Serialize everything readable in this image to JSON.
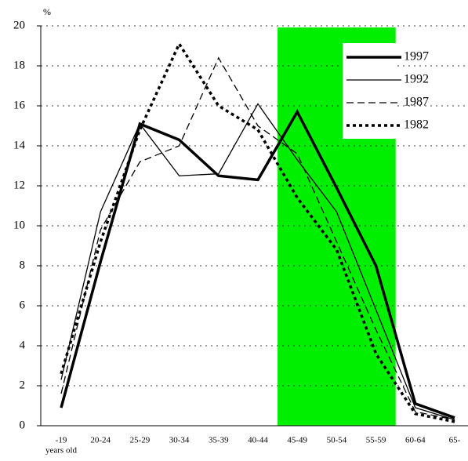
{
  "chart_data": {
    "type": "line",
    "y_unit": "%",
    "x_sublabel": "years old",
    "categories": [
      "-19",
      "20-24",
      "25-29",
      "30-34",
      "35-39",
      "40-44",
      "45-49",
      "50-54",
      "55-59",
      "60-64",
      "65-"
    ],
    "series": [
      {
        "name": "1997",
        "color": "#000000",
        "width": 3.5,
        "dash": "none",
        "values": [
          0.9,
          8.2,
          15.1,
          14.3,
          12.5,
          12.3,
          15.7,
          11.9,
          8.0,
          1.1,
          0.4
        ]
      },
      {
        "name": "1992",
        "color": "#000000",
        "width": 1.3,
        "dash": "none",
        "values": [
          2.3,
          10.7,
          15.1,
          12.5,
          12.6,
          16.1,
          13.3,
          10.7,
          5.8,
          0.9,
          0.3
        ]
      },
      {
        "name": "1987",
        "color": "#000000",
        "width": 1.3,
        "dash": "9,5",
        "values": [
          1.6,
          9.8,
          13.2,
          14.0,
          18.4,
          15.0,
          13.6,
          9.2,
          4.8,
          0.7,
          0.3
        ]
      },
      {
        "name": "1982",
        "color": "#000000",
        "width": 3.5,
        "dash": "4,4",
        "values": [
          2.6,
          9.2,
          14.8,
          19.1,
          16.0,
          14.8,
          11.4,
          8.8,
          3.6,
          0.6,
          0.2
        ]
      }
    ],
    "highlight": {
      "start": "45-49",
      "end": "55-59",
      "color": "#00ee00"
    },
    "ylim": [
      0,
      20
    ],
    "yticks": [
      0,
      2,
      4,
      6,
      8,
      10,
      12,
      14,
      16,
      18,
      20
    ],
    "grid": true,
    "legend": "upper-right"
  }
}
